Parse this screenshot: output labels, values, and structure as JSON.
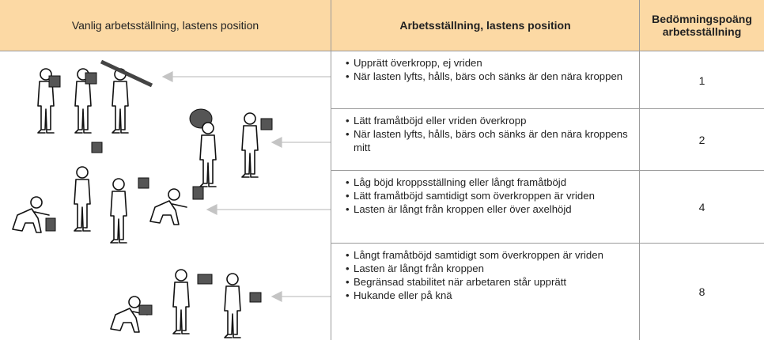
{
  "header": {
    "col1": "Vanlig arbetsställning, lastens position",
    "col2": "Arbetsställning, lastens position",
    "col3": "Bedömningspoäng arbetsställning"
  },
  "rows": [
    {
      "bullets": [
        "Upprätt överkropp, ej vriden",
        "När lasten lyfts, hålls, bärs och sänks är den nära kroppen"
      ],
      "score": 1
    },
    {
      "bullets": [
        "Lätt framåtböjd eller vriden överkropp",
        "När lasten lyfts, hålls, bärs och sänks är den nära kroppens mitt"
      ],
      "score": 2
    },
    {
      "bullets": [
        "Låg böjd kroppsställning eller långt framåtböjd",
        "Lätt framåtböjd samtidigt som överkroppen är vriden",
        "Lasten är långt från kroppen eller över axelhöjd"
      ],
      "score": 4
    },
    {
      "bullets": [
        "Långt framåtböjd samtidigt som överkroppen är vriden",
        "Lasten är långt från kroppen",
        "Begränsad stabilitet när arbetaren står upprätt",
        "Hukande eller på knä"
      ],
      "score": 8
    }
  ]
}
